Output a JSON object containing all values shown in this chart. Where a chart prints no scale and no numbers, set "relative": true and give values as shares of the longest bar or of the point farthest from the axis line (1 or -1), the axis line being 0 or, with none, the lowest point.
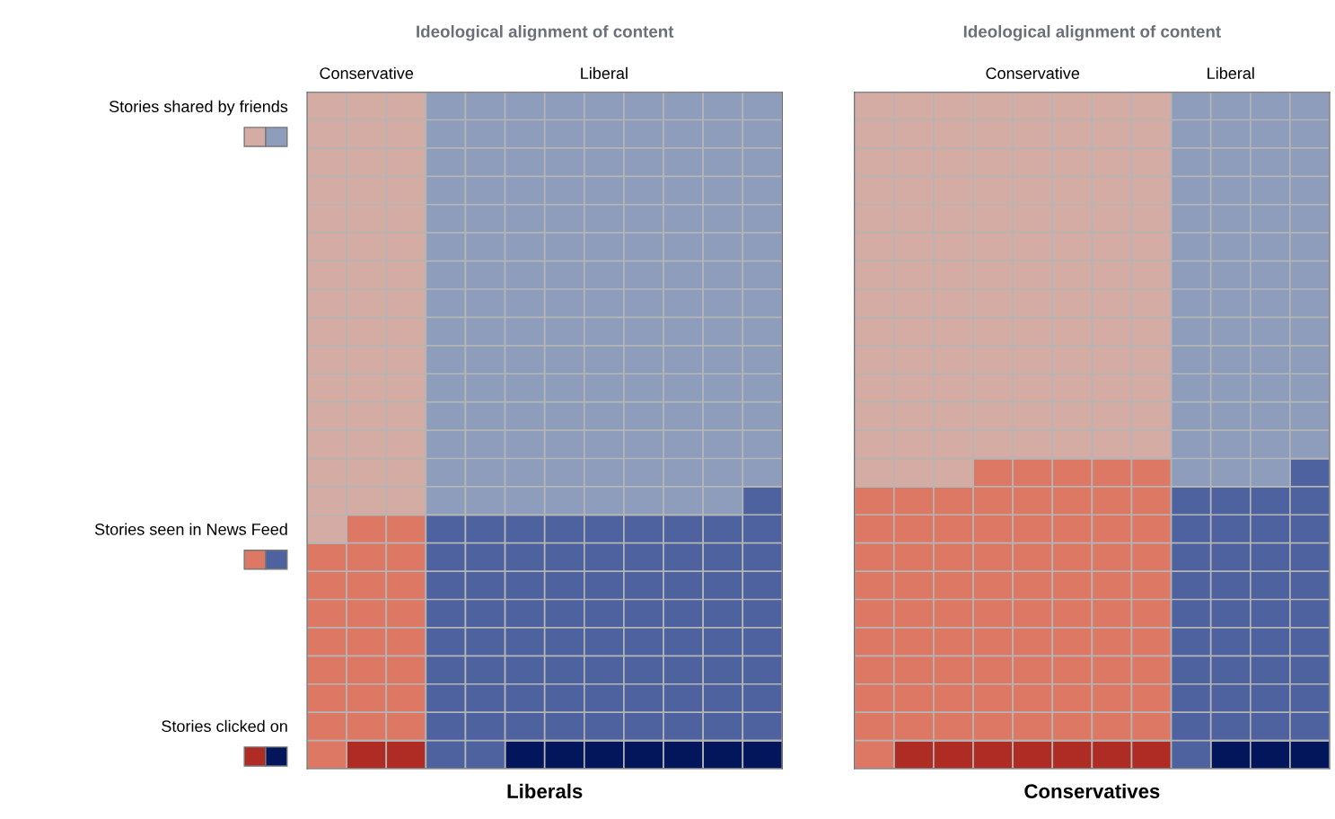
{
  "chart_data": [
    {
      "type": "bar",
      "stacked": true,
      "relative": true,
      "grid": "y",
      "title": "Ideological alignment of content",
      "xlabel": "Liberals",
      "categories": [
        null,
        "Conservative",
        null,
        null,
        null,
        null,
        null,
        "Liberal",
        null,
        null,
        null,
        null
      ],
      "annotations": [
        "Stories shared by friends",
        "Stories seen in News Feed",
        "Stories clicked on"
      ],
      "series": [
        {
          "color": "#ae2c24",
          "values": [
            null,
            0.0417,
            0.0417,
            null,
            null,
            null,
            null,
            null,
            null,
            null,
            null,
            null
          ]
        },
        {
          "color": "#03165c",
          "values": [
            null,
            null,
            null,
            null,
            null,
            0.0417,
            0.0417,
            0.0417,
            0.0417,
            0.0417,
            0.0417,
            0.0417
          ]
        },
        {
          "color": "#dd7864",
          "values": [
            0.3333,
            0.3333,
            0.3333,
            null,
            null,
            null,
            null,
            null,
            null,
            null,
            null,
            null
          ]
        },
        {
          "color": "#4e62a0",
          "values": [
            null,
            null,
            null,
            0.375,
            0.375,
            0.3333,
            0.3333,
            0.3333,
            0.3333,
            0.3333,
            0.3333,
            0.375
          ]
        },
        {
          "color": "#d4aca4",
          "values": [
            0.6667,
            0.625,
            0.625,
            null,
            null,
            null,
            null,
            null,
            null,
            null,
            null,
            null
          ]
        },
        {
          "color": "#8f9dbd",
          "values": [
            null,
            null,
            null,
            0.625,
            0.625,
            0.625,
            0.625,
            0.625,
            0.625,
            0.625,
            0.625,
            0.5833
          ]
        }
      ]
    },
    {
      "type": "bar",
      "stacked": true,
      "relative": true,
      "grid": "y",
      "title": "Ideological alignment of content",
      "xlabel": "Conservatives",
      "categories": [
        null,
        null,
        null,
        null,
        "Conservative",
        null,
        null,
        null,
        null,
        "Liberal",
        null,
        null
      ],
      "series": [
        {
          "color": "#ae2c24",
          "values": [
            null,
            0.0417,
            0.0417,
            0.0417,
            0.0417,
            0.0417,
            0.0417,
            0.0417,
            null,
            null,
            null,
            null
          ]
        },
        {
          "color": "#03165c",
          "values": [
            null,
            null,
            null,
            null,
            null,
            null,
            null,
            null,
            null,
            0.0417,
            0.0417,
            0.0417
          ]
        },
        {
          "color": "#dd7864",
          "values": [
            0.4167,
            0.375,
            0.375,
            0.4167,
            0.4167,
            0.4167,
            0.4167,
            0.4167,
            null,
            null,
            null,
            null
          ]
        },
        {
          "color": "#4e62a0",
          "values": [
            null,
            null,
            null,
            null,
            null,
            null,
            null,
            null,
            0.4167,
            0.375,
            0.375,
            0.4167
          ]
        },
        {
          "color": "#d4aca4",
          "values": [
            0.5833,
            0.5833,
            0.5833,
            0.5416,
            0.5416,
            0.5416,
            0.5416,
            0.5416,
            null,
            null,
            null,
            null
          ]
        },
        {
          "color": "#8f9dbd",
          "values": [
            null,
            null,
            null,
            null,
            null,
            null,
            null,
            null,
            0.5833,
            0.5833,
            0.5833,
            0.5416
          ]
        }
      ]
    }
  ]
}
